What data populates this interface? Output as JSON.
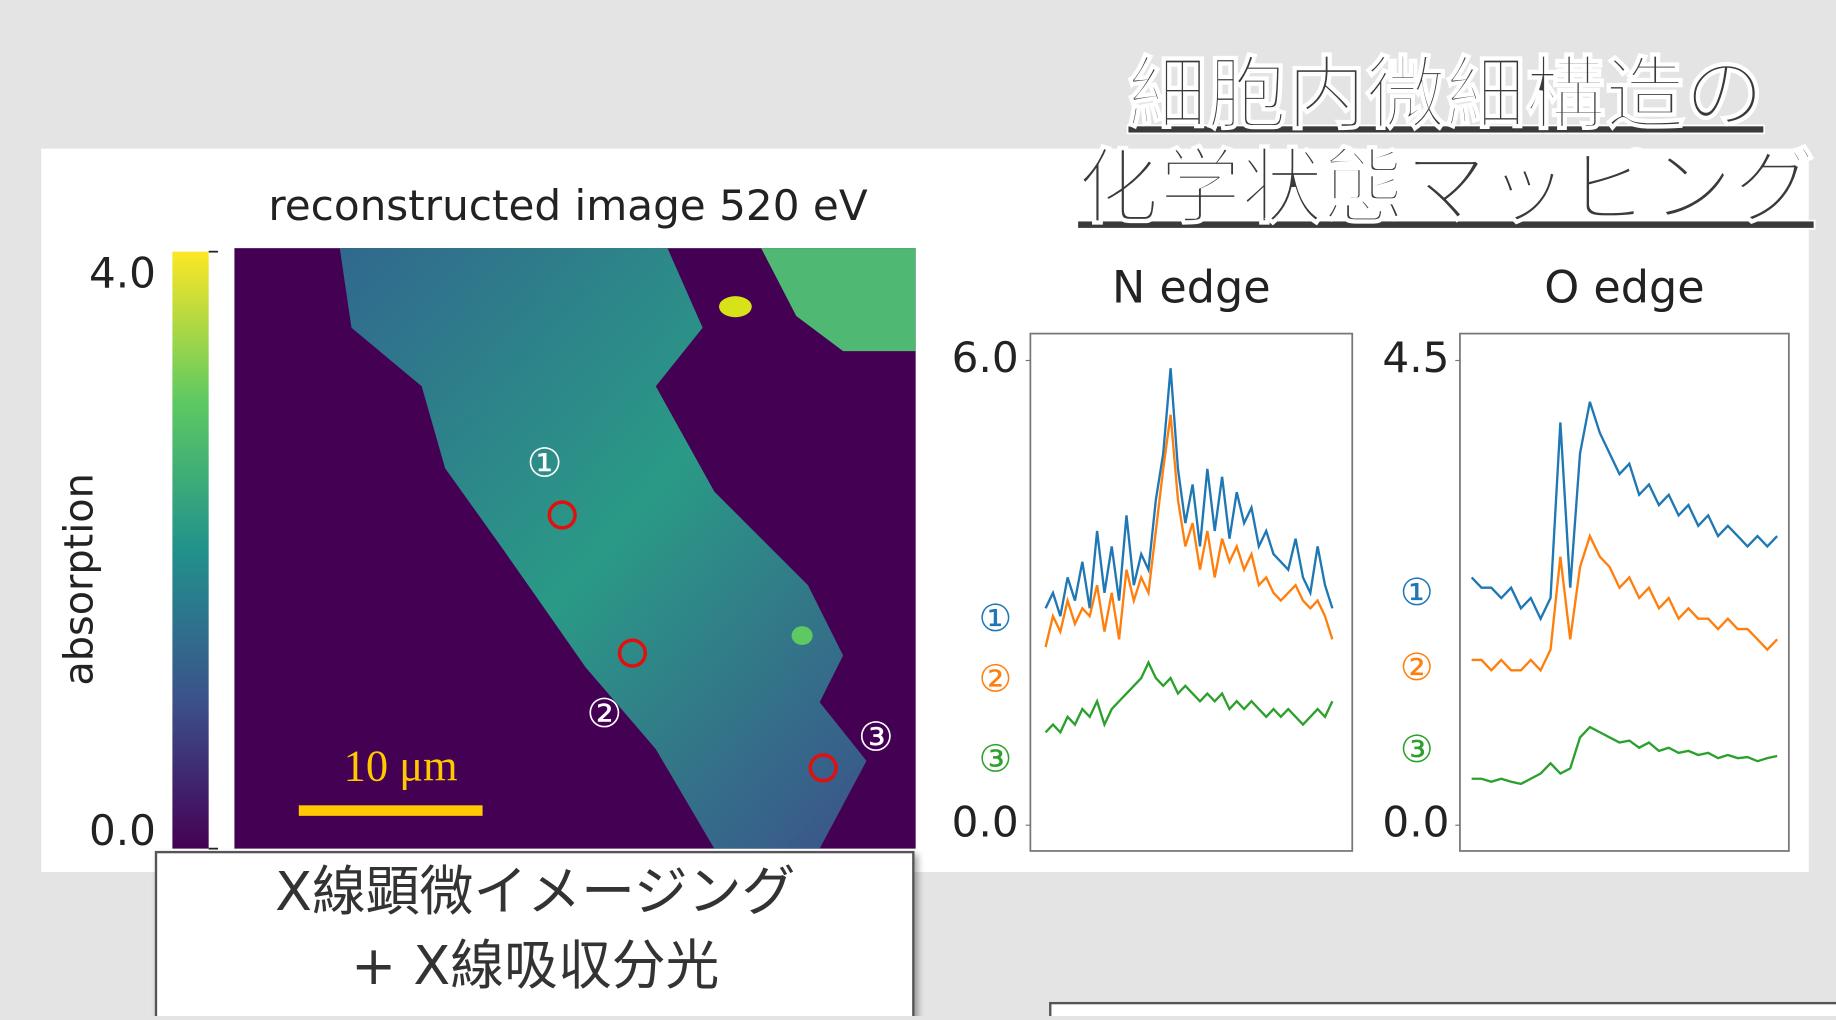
{
  "header": {
    "title_lines": [
      "細胞内微細構造の",
      "化学状態マッピング"
    ]
  },
  "image_panel": {
    "title": "reconstructed image 520 eV",
    "colorbar": {
      "label": "absorption",
      "lim": [
        0,
        4
      ],
      "ticks": [
        {
          "value": 4,
          "label": "4.0"
        },
        {
          "value": 0,
          "label": "0.0"
        }
      ]
    },
    "scale_bar": "10 μm",
    "markers": [
      "①",
      "②",
      "③"
    ]
  },
  "chart_data": [
    {
      "type": "line",
      "title": "N edge",
      "ylim": [
        0,
        6
      ],
      "yticks": [
        {
          "value": 6,
          "label": "6.0"
        },
        {
          "value": 0,
          "label": "0.0"
        }
      ],
      "series": [
        {
          "name": "①",
          "color": "#1f77b4",
          "values": [
            2.8,
            3.0,
            2.7,
            3.2,
            2.9,
            3.4,
            2.8,
            3.8,
            3.0,
            3.6,
            2.9,
            4.0,
            3.1,
            3.5,
            3.3,
            4.2,
            4.8,
            5.9,
            4.6,
            3.9,
            4.4,
            3.6,
            4.6,
            3.8,
            4.5,
            3.7,
            4.3,
            3.9,
            4.1,
            3.6,
            3.8,
            3.5,
            3.4,
            3.3,
            3.7,
            3.2,
            3.0,
            3.6,
            3.1,
            2.8
          ]
        },
        {
          "name": "②",
          "color": "#ff7f0e",
          "values": [
            2.3,
            2.7,
            2.5,
            2.9,
            2.6,
            2.8,
            2.7,
            3.1,
            2.5,
            3.0,
            2.4,
            3.3,
            2.9,
            3.2,
            3.0,
            3.8,
            4.6,
            5.3,
            4.2,
            3.6,
            3.9,
            3.3,
            3.8,
            3.2,
            3.7,
            3.4,
            3.6,
            3.3,
            3.5,
            3.1,
            3.2,
            3.0,
            2.9,
            3.0,
            3.1,
            2.9,
            2.8,
            2.9,
            2.7,
            2.4
          ]
        },
        {
          "name": "③",
          "color": "#2ca02c",
          "values": [
            1.2,
            1.3,
            1.2,
            1.4,
            1.3,
            1.5,
            1.4,
            1.6,
            1.3,
            1.5,
            1.6,
            1.7,
            1.8,
            1.9,
            2.1,
            1.9,
            1.8,
            1.9,
            1.7,
            1.8,
            1.7,
            1.6,
            1.7,
            1.6,
            1.7,
            1.5,
            1.6,
            1.5,
            1.6,
            1.5,
            1.4,
            1.5,
            1.4,
            1.5,
            1.4,
            1.3,
            1.4,
            1.5,
            1.4,
            1.6
          ]
        }
      ]
    },
    {
      "type": "line",
      "title": "O edge",
      "ylim": [
        0,
        4.5
      ],
      "yticks": [
        {
          "value": 4.5,
          "label": "4.5"
        },
        {
          "value": 0,
          "label": "0.0"
        }
      ],
      "series": [
        {
          "name": "①",
          "color": "#1f77b4",
          "values": [
            2.4,
            2.3,
            2.3,
            2.2,
            2.3,
            2.1,
            2.2,
            2.0,
            2.2,
            3.9,
            2.3,
            3.6,
            4.1,
            3.8,
            3.6,
            3.4,
            3.5,
            3.2,
            3.3,
            3.1,
            3.2,
            3.0,
            3.1,
            2.9,
            3.0,
            2.8,
            2.9,
            2.8,
            2.7,
            2.8,
            2.7,
            2.8
          ]
        },
        {
          "name": "②",
          "color": "#ff7f0e",
          "values": [
            1.6,
            1.6,
            1.5,
            1.6,
            1.5,
            1.5,
            1.6,
            1.5,
            1.7,
            2.6,
            1.8,
            2.5,
            2.8,
            2.6,
            2.5,
            2.3,
            2.4,
            2.2,
            2.3,
            2.1,
            2.2,
            2.0,
            2.1,
            2.0,
            2.0,
            1.9,
            2.0,
            1.9,
            1.9,
            1.8,
            1.7,
            1.8
          ]
        },
        {
          "name": "③",
          "color": "#2ca02c",
          "values": [
            0.45,
            0.45,
            0.42,
            0.45,
            0.42,
            0.4,
            0.45,
            0.5,
            0.6,
            0.5,
            0.55,
            0.85,
            0.95,
            0.9,
            0.85,
            0.8,
            0.82,
            0.75,
            0.8,
            0.72,
            0.75,
            0.7,
            0.72,
            0.68,
            0.7,
            0.65,
            0.68,
            0.65,
            0.66,
            0.62,
            0.65,
            0.67
          ]
        }
      ]
    }
  ],
  "caption": {
    "lines": [
      "X線顕微イメージング",
      "+ X線吸収分光"
    ]
  }
}
